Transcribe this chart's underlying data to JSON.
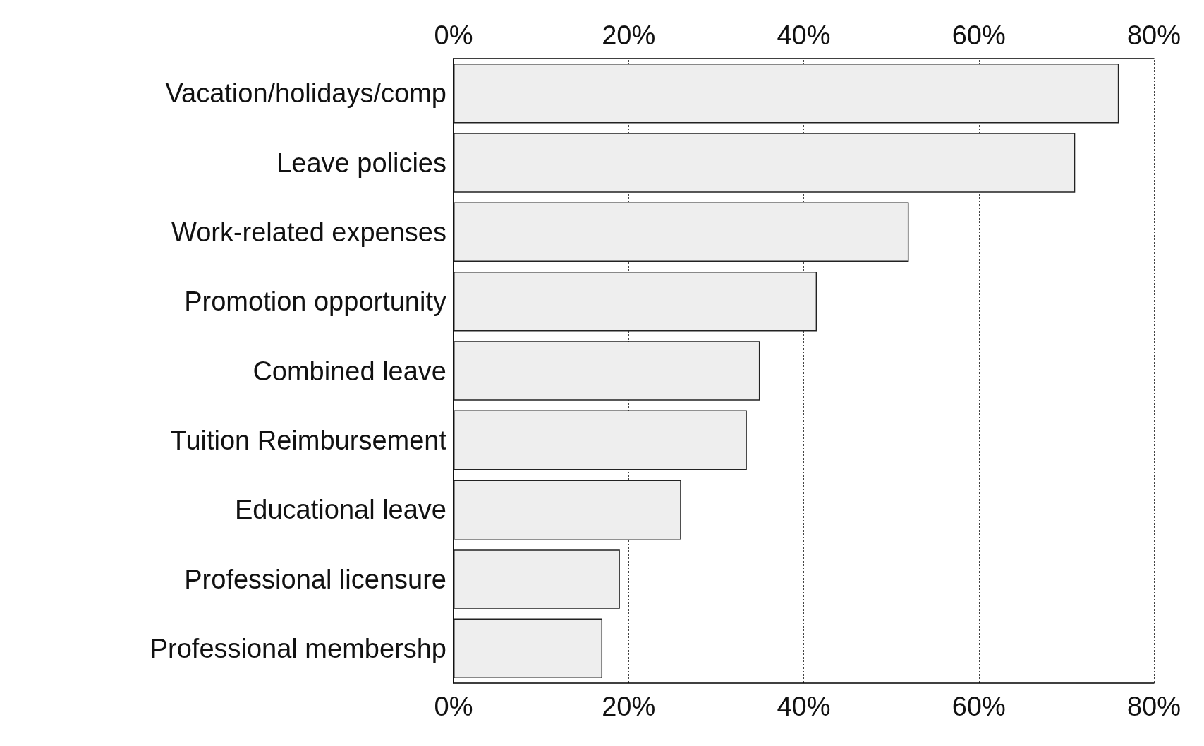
{
  "chart_data": {
    "type": "bar",
    "orientation": "horizontal",
    "categories": [
      "Vacation/holidays/comp",
      "Leave policies",
      "Work-related expenses",
      "Promotion opportunity",
      "Combined leave",
      "Tuition Reimbursement",
      "Educational leave",
      "Professional licensure",
      "Professional membershp"
    ],
    "values": [
      76,
      71,
      52,
      41.5,
      35,
      33.5,
      26,
      19,
      17
    ],
    "color": "#eeeeee",
    "xlim": [
      0,
      80
    ],
    "xticks": [
      {
        "value": 0,
        "label": "0%"
      },
      {
        "value": 20,
        "label": "20%"
      },
      {
        "value": 40,
        "label": "40%"
      },
      {
        "value": 60,
        "label": "60%"
      },
      {
        "value": 80,
        "label": "80%"
      }
    ],
    "x2lim": [
      0,
      80
    ],
    "x2ticks": [
      {
        "value": 0,
        "label": "0%"
      },
      {
        "value": 20,
        "label": "20%"
      },
      {
        "value": 40,
        "label": "40%"
      },
      {
        "value": 60,
        "label": "60%"
      },
      {
        "value": 80,
        "label": "80%"
      }
    ],
    "grid": "x",
    "line_style": "dotted"
  }
}
